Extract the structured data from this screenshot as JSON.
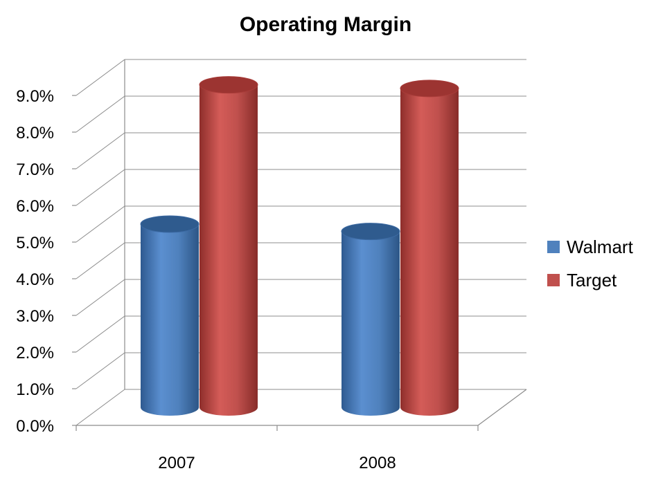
{
  "chart_data": {
    "type": "bar",
    "style": "3d-cylinder",
    "title": "Operating Margin",
    "categories": [
      "2007",
      "2008"
    ],
    "series": [
      {
        "name": "Walmart",
        "values": [
          5.0,
          4.8
        ],
        "color": "#4f81bd"
      },
      {
        "name": "Target",
        "values": [
          8.8,
          8.7
        ],
        "color": "#c0504d"
      }
    ],
    "y_ticks": [
      "0.0%",
      "1.0%",
      "2.0%",
      "3.0%",
      "4.0%",
      "5.0%",
      "6.0%",
      "7.0%",
      "8.0%",
      "9.0%"
    ],
    "ylim": [
      0,
      9
    ],
    "grid": true,
    "legend_position": "right"
  }
}
